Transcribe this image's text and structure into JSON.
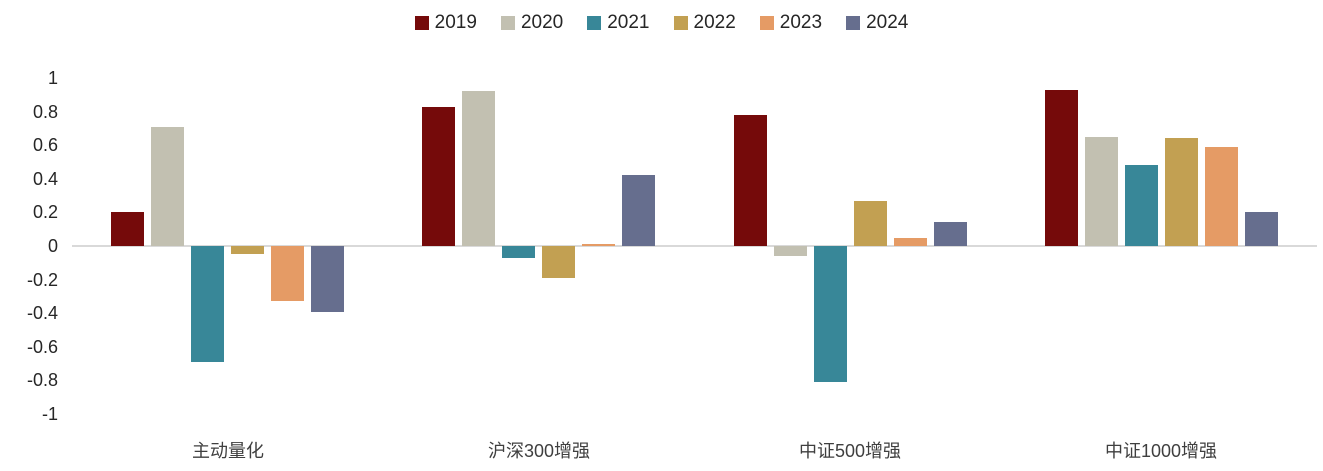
{
  "chart_data": {
    "type": "bar",
    "title": "",
    "xlabel": "",
    "ylabel": "",
    "categories": [
      "主动量化",
      "沪深300增强",
      "中证500增强",
      "中证1000增强"
    ],
    "series": [
      {
        "name": "2019",
        "color": "#750a0a",
        "values": [
          0.2,
          0.83,
          0.78,
          0.93
        ]
      },
      {
        "name": "2020",
        "color": "#c2c0b1",
        "values": [
          0.71,
          0.92,
          -0.06,
          0.65
        ]
      },
      {
        "name": "2021",
        "color": "#388798",
        "values": [
          -0.69,
          -0.07,
          -0.81,
          0.48
        ]
      },
      {
        "name": "2022",
        "color": "#c2a052",
        "values": [
          -0.05,
          -0.19,
          0.27,
          0.64
        ]
      },
      {
        "name": "2023",
        "color": "#e59b65",
        "values": [
          -0.33,
          0.01,
          0.05,
          0.59
        ]
      },
      {
        "name": "2024",
        "color": "#666e8e",
        "values": [
          -0.39,
          0.42,
          0.14,
          0.2
        ]
      }
    ],
    "ylim": [
      -1,
      1
    ],
    "yticks": [
      1,
      0.8,
      0.6,
      0.4,
      0.2,
      0,
      -0.2,
      -0.4,
      -0.6,
      -0.8,
      -1
    ],
    "grid": false,
    "legend_position": "top",
    "axis_line_color": "#d9d9d9",
    "tick_text_color": "#262626",
    "category_text_color": "#3f3f3f",
    "background_color": "#ffffff"
  }
}
